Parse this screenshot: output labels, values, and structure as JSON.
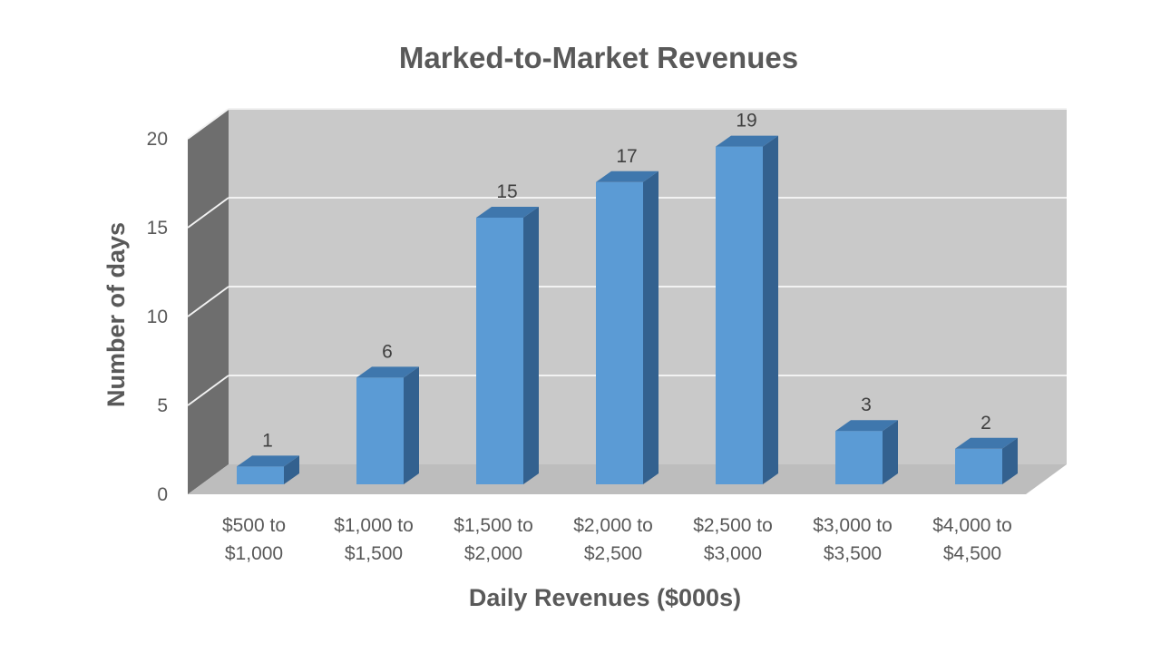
{
  "chart_data": {
    "type": "bar",
    "title": "Marked-to-Market Revenues",
    "xlabel": "Daily Revenues ($000s)",
    "ylabel": "Number of days",
    "categories": [
      [
        "$500 to",
        "$1,000"
      ],
      [
        "$1,000 to",
        "$1,500"
      ],
      [
        "$1,500 to",
        "$2,000"
      ],
      [
        "$2,000 to",
        "$2,500"
      ],
      [
        "$2,500 to",
        "$3,000"
      ],
      [
        "$3,000 to",
        "$3,500"
      ],
      [
        "$4,000 to",
        "$4,500"
      ]
    ],
    "values": [
      1,
      6,
      15,
      17,
      19,
      3,
      2
    ],
    "data_labels": [
      "1",
      "6",
      "15",
      "17",
      "19",
      "3",
      "2"
    ],
    "y_ticks": [
      "0",
      "5",
      "10",
      "15",
      "20"
    ],
    "ylim": [
      0,
      20
    ],
    "grid": true,
    "legend": "none",
    "style": "3d-column",
    "colors": {
      "bar_front": "#5b9bd5",
      "bar_top": "#3f77ad",
      "bar_side": "#33618f",
      "back_wall": "#c9c9c9",
      "side_wall": "#6e6e6e",
      "floor": "#bdbdbd",
      "grid": "#f2f2f2"
    }
  }
}
